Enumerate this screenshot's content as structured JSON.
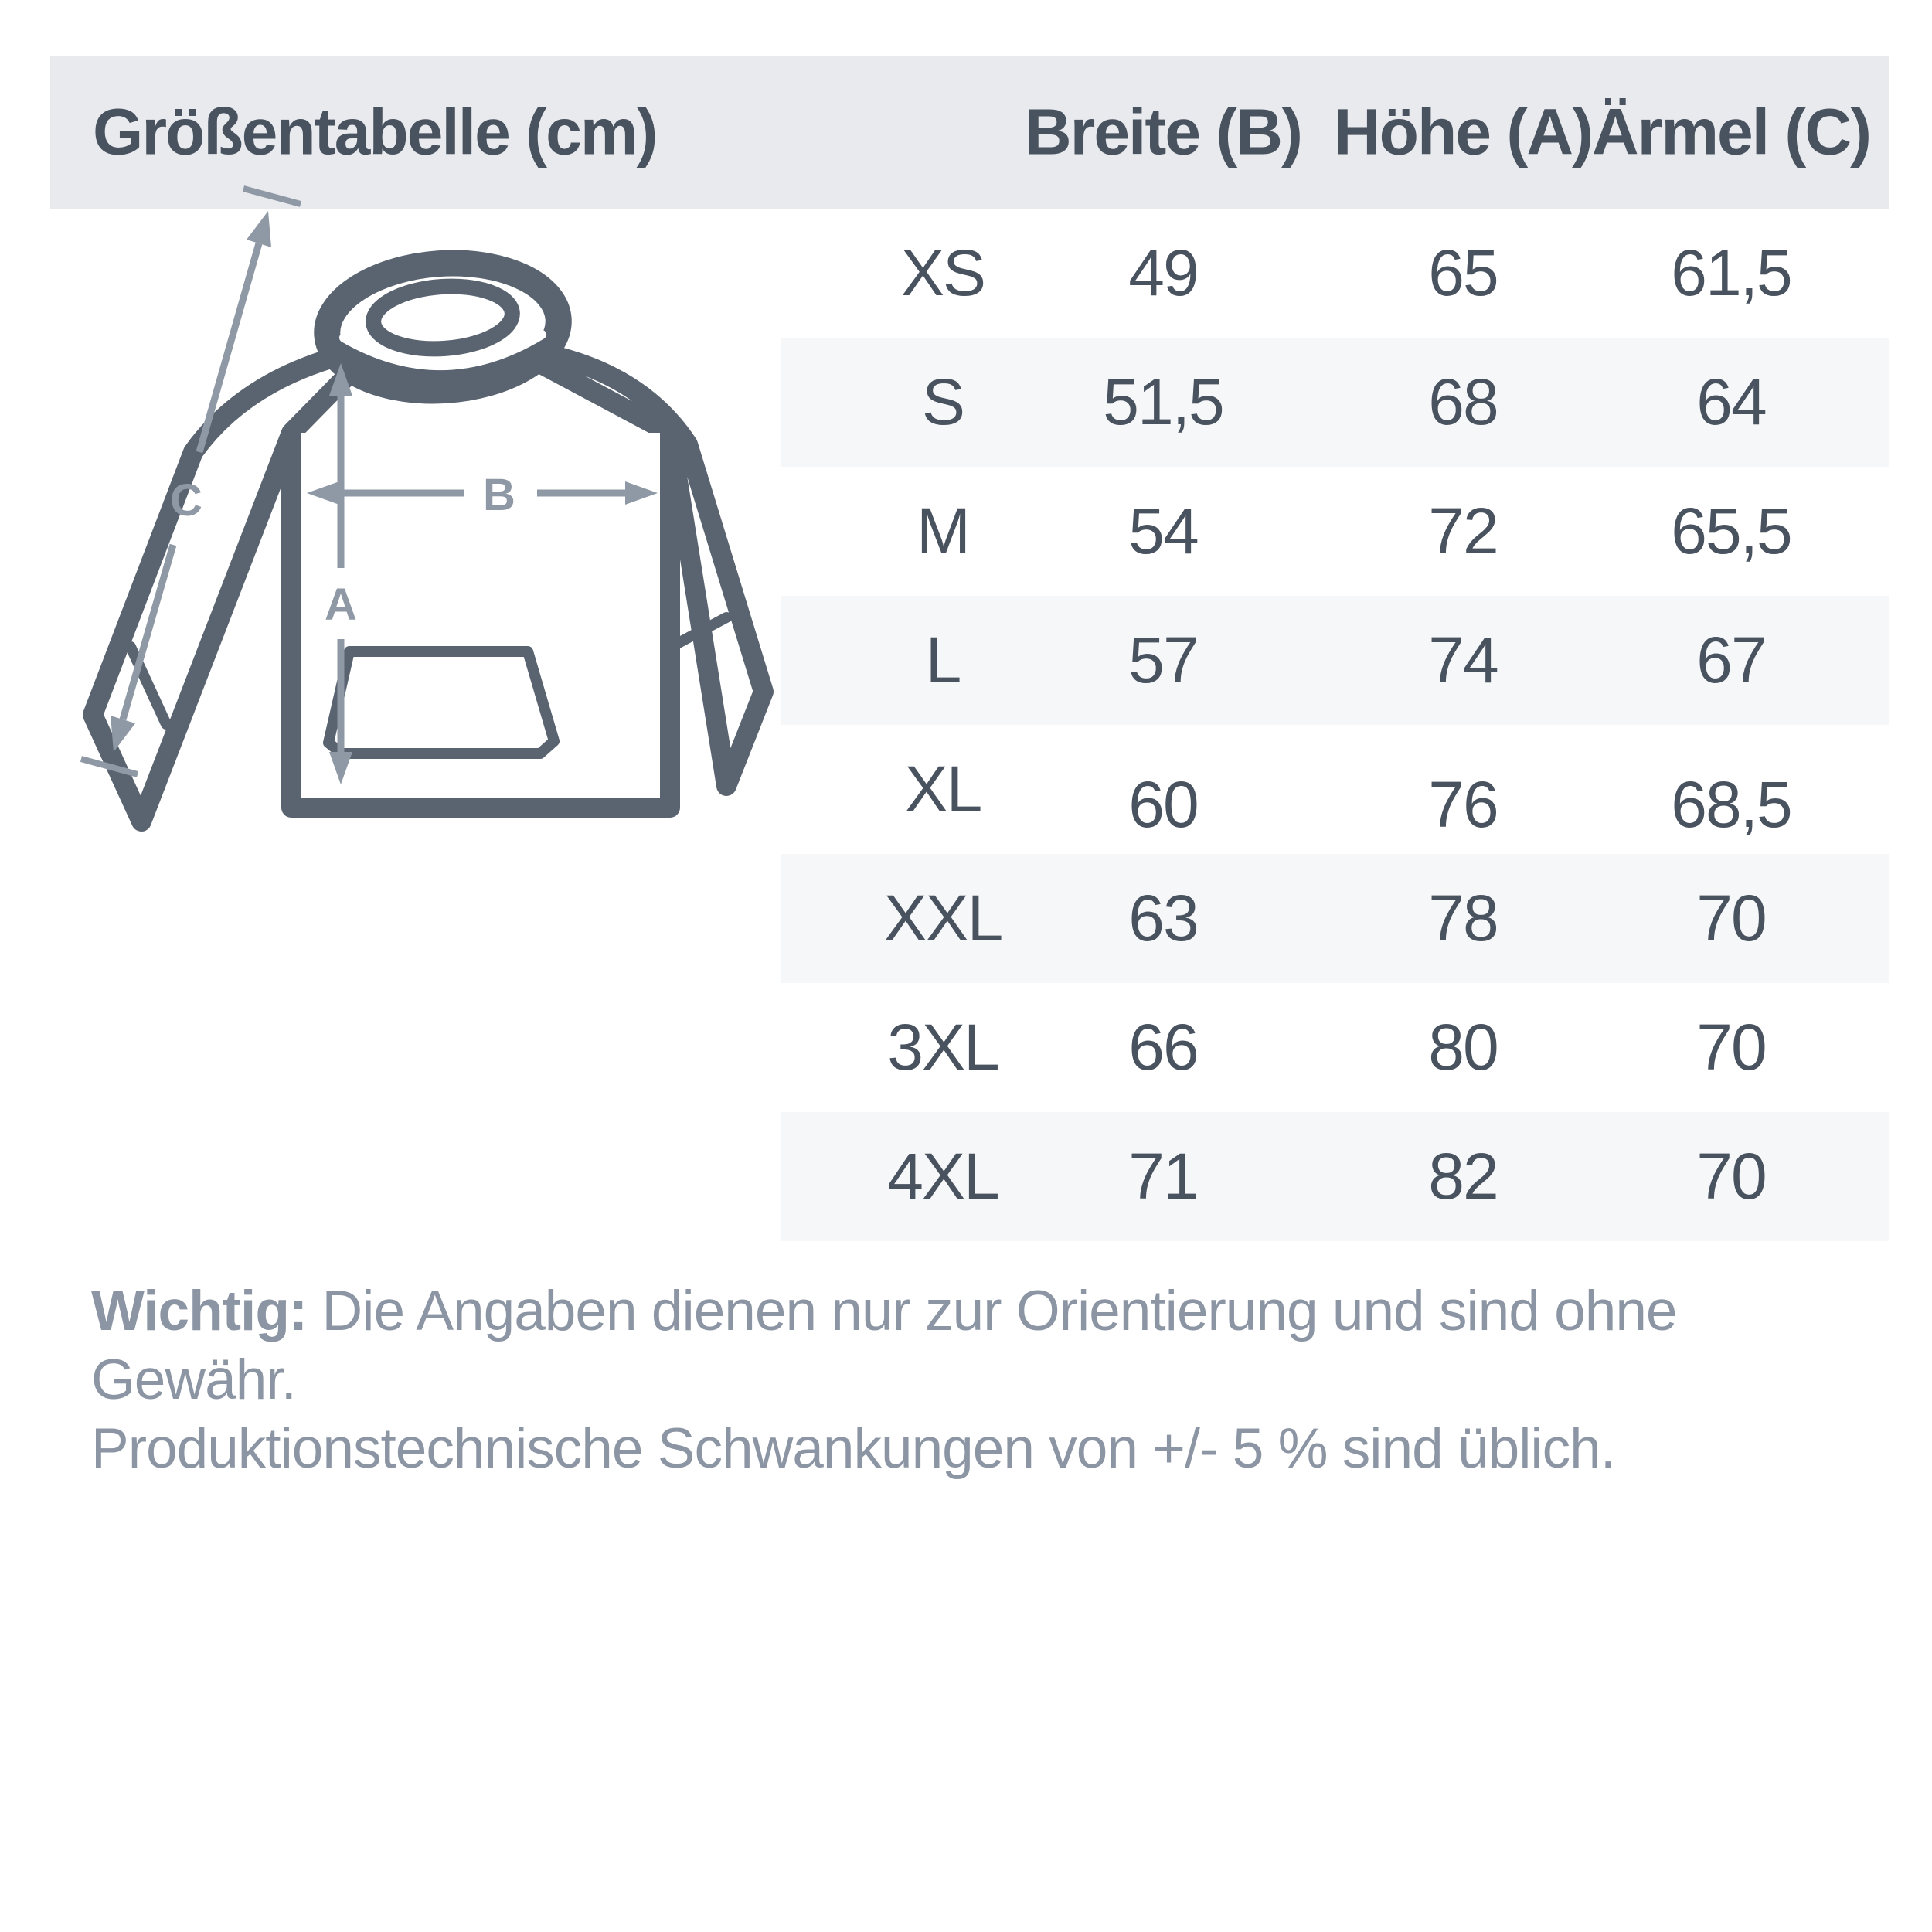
{
  "table": {
    "title": "Größentabelle (cm)",
    "columns": [
      "Breite (B)",
      "Höhe (A)",
      "Ärmel (C)"
    ],
    "rows": [
      {
        "size": "XS",
        "breite": "49",
        "hoehe": "65",
        "aermel": "61,5"
      },
      {
        "size": "S",
        "breite": "51,5",
        "hoehe": "68",
        "aermel": "64"
      },
      {
        "size": "M",
        "breite": "54",
        "hoehe": "72",
        "aermel": "65,5"
      },
      {
        "size": "L",
        "breite": "57",
        "hoehe": "74",
        "aermel": "67"
      },
      {
        "size": "XL",
        "breite": "60",
        "hoehe": "76",
        "aermel": "68,5"
      },
      {
        "size": "XXL",
        "breite": "63",
        "hoehe": "78",
        "aermel": "70"
      },
      {
        "size": "3XL",
        "breite": "66",
        "hoehe": "80",
        "aermel": "70"
      },
      {
        "size": "4XL",
        "breite": "71",
        "hoehe": "82",
        "aermel": "70"
      }
    ]
  },
  "diagram": {
    "label_a": "A",
    "label_b": "B",
    "label_c": "C"
  },
  "footer": {
    "bold": "Wichtig:",
    "line1": "Die Angaben dienen nur zur Orientierung und sind ohne Gewähr.",
    "line2": "Produktionstechnische Schwankungen von +/- 5 % sind üblich."
  },
  "colors": {
    "header_bg": "#e8eaee",
    "stripe_bg": "#f5f7f9",
    "text_dark": "#49525f",
    "text_muted": "#8c95a3",
    "hoodie_outline": "#5a6370",
    "arrow": "#8f99a6"
  }
}
